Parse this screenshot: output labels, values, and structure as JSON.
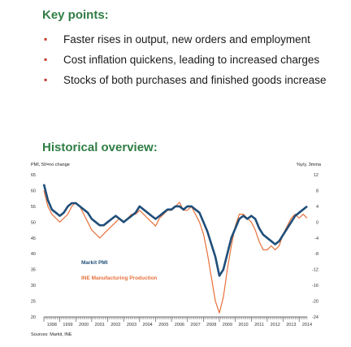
{
  "key_points": {
    "title": "Key points:",
    "items": [
      "Faster rises in output, new orders and employment",
      "Cost inflation quickens, leading to increased charges",
      "Stocks of both purchases and finished goods increase"
    ]
  },
  "historical": {
    "title": "Historical overview:"
  },
  "chart_data": {
    "type": "line",
    "left_axis_label": "PMI, 50=no change",
    "right_axis_label": "%y/y, 3mma",
    "source": "Sources: Markit, INE",
    "y_left": {
      "min": 20,
      "max": 65,
      "ticks": [
        65,
        60,
        55,
        50,
        45,
        40,
        35,
        30,
        25,
        20
      ]
    },
    "y_right": {
      "min": -24,
      "max": 12,
      "ticks": [
        12,
        8,
        4,
        0,
        -4,
        -8,
        -12,
        -16,
        -20,
        -24
      ]
    },
    "x_ticks": [
      "1998",
      "1999",
      "2000",
      "2001",
      "2002",
      "2003",
      "2004",
      "2005",
      "2006",
      "2007",
      "2008",
      "2009",
      "2010",
      "2011",
      "2012",
      "2013",
      "2014"
    ],
    "colors": {
      "pmi": "#1f4e79",
      "ine": "#e8703a"
    },
    "series": [
      {
        "name": "Markit PMI",
        "axis": "left",
        "x": [
          1998.0,
          1998.25,
          1998.5,
          1998.75,
          1999.0,
          1999.25,
          1999.5,
          1999.75,
          2000.0,
          2000.25,
          2000.5,
          2000.75,
          2001.0,
          2001.25,
          2001.5,
          2001.75,
          2002.0,
          2002.25,
          2002.5,
          2002.75,
          2003.0,
          2003.25,
          2003.5,
          2003.75,
          2004.0,
          2004.25,
          2004.5,
          2004.75,
          2005.0,
          2005.25,
          2005.5,
          2005.75,
          2006.0,
          2006.25,
          2006.5,
          2006.75,
          2007.0,
          2007.25,
          2007.5,
          2007.75,
          2008.0,
          2008.25,
          2008.5,
          2008.75,
          2009.0,
          2009.25,
          2009.5,
          2009.75,
          2010.0,
          2010.25,
          2010.5,
          2010.75,
          2011.0,
          2011.25,
          2011.5,
          2011.75,
          2012.0,
          2012.25,
          2012.5,
          2012.75,
          2013.0,
          2013.25,
          2013.5,
          2013.75,
          2014.0,
          2014.25,
          2014.5
        ],
        "y": [
          62,
          57,
          54,
          53,
          52,
          53,
          55,
          56,
          56,
          55,
          54,
          53,
          51,
          50,
          49,
          49,
          50,
          51,
          52,
          51,
          50,
          51,
          52,
          53,
          55,
          54,
          53,
          52,
          51,
          52,
          53,
          54,
          54,
          55,
          55,
          54,
          55,
          55,
          54,
          53,
          50,
          47,
          43,
          39,
          33,
          35,
          40,
          45,
          48,
          51,
          52,
          51,
          52,
          51,
          48,
          46,
          45,
          44,
          43,
          44,
          46,
          48,
          50,
          52,
          53,
          54,
          55
        ]
      },
      {
        "name": "INE Manufacturing Production",
        "axis": "right",
        "x": [
          1998.0,
          1998.25,
          1998.5,
          1998.75,
          1999.0,
          1999.25,
          1999.5,
          1999.75,
          2000.0,
          2000.25,
          2000.5,
          2000.75,
          2001.0,
          2001.25,
          2001.5,
          2001.75,
          2002.0,
          2002.25,
          2002.5,
          2002.75,
          2003.0,
          2003.25,
          2003.5,
          2003.75,
          2004.0,
          2004.25,
          2004.5,
          2004.75,
          2005.0,
          2005.25,
          2005.5,
          2005.75,
          2006.0,
          2006.25,
          2006.5,
          2006.75,
          2007.0,
          2007.25,
          2007.5,
          2007.75,
          2008.0,
          2008.25,
          2008.5,
          2008.75,
          2009.0,
          2009.25,
          2009.5,
          2009.75,
          2010.0,
          2010.25,
          2010.5,
          2010.75,
          2011.0,
          2011.25,
          2011.5,
          2011.75,
          2012.0,
          2012.25,
          2012.5,
          2012.75,
          2013.0,
          2013.25,
          2013.5,
          2013.75,
          2014.0,
          2014.25,
          2014.5
        ],
        "y": [
          8,
          4,
          2,
          1,
          0,
          1,
          2,
          4,
          5,
          4,
          2,
          0,
          -2,
          -3,
          -4,
          -3,
          -2,
          -1,
          0,
          1,
          0,
          1,
          2,
          2,
          3,
          2,
          1,
          0,
          -1,
          1,
          2,
          3,
          3,
          4,
          5,
          3,
          3,
          4,
          2,
          0,
          -3,
          -8,
          -14,
          -20,
          -23,
          -19,
          -12,
          -6,
          -1,
          2,
          2,
          1,
          0,
          -2,
          -5,
          -7,
          -7,
          -6,
          -7,
          -6,
          -3,
          -1,
          1,
          2,
          1,
          2,
          1
        ]
      }
    ]
  }
}
